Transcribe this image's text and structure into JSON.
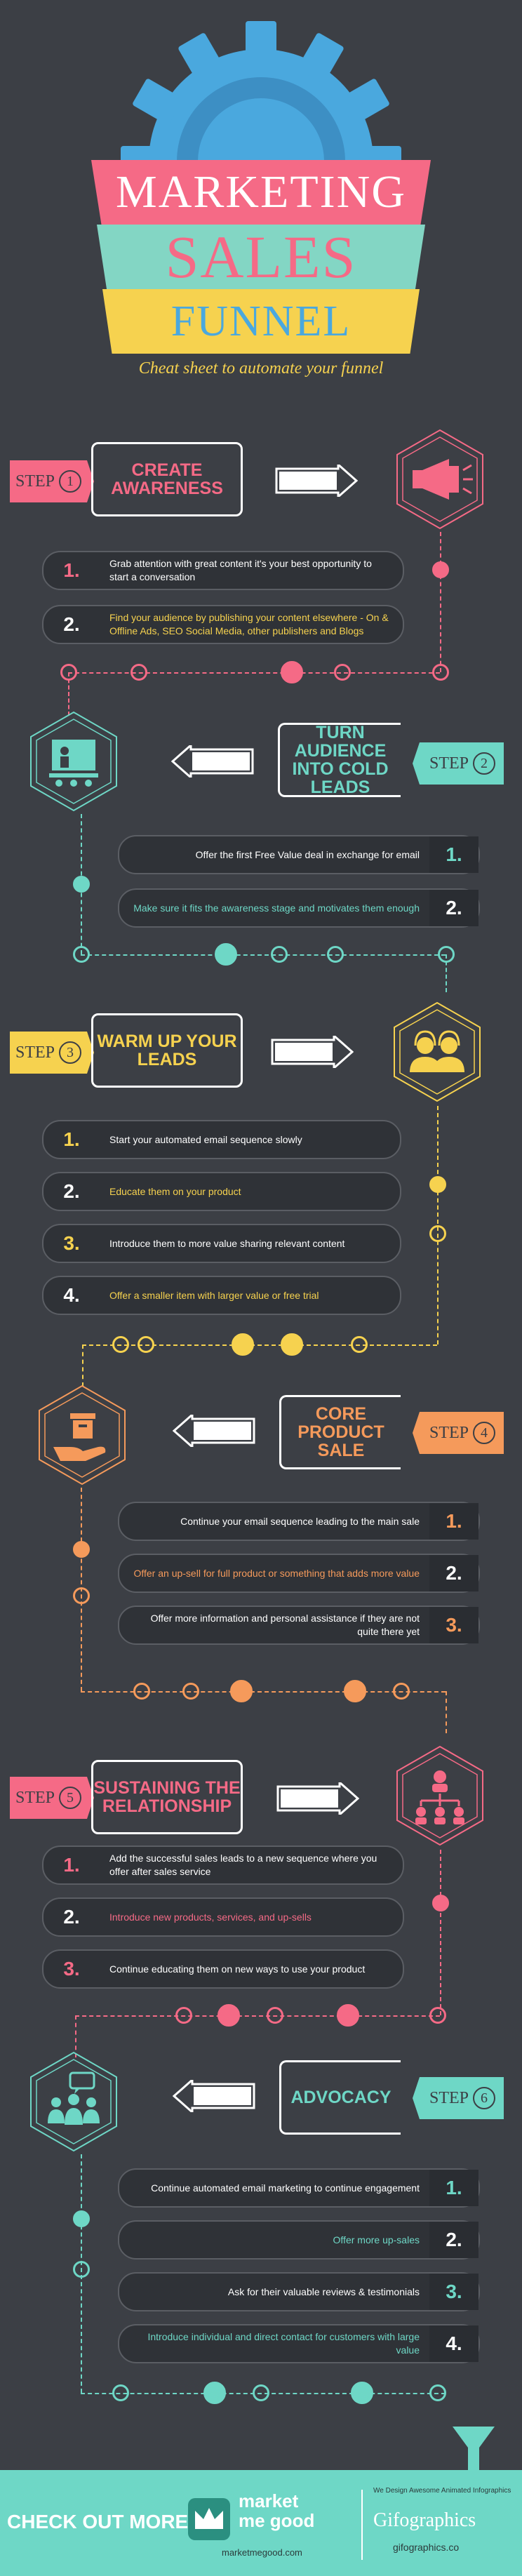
{
  "header": {
    "title_line1": "MARKETING",
    "title_line2": "SALES",
    "title_line3": "FUNNEL",
    "subtitle": "Cheat sheet to automate your funnel"
  },
  "colors": {
    "pink": "#f56a86",
    "mint": "#6ed7c6",
    "yellow": "#f6d24f",
    "orange": "#f59a5b",
    "blue": "#4aa8de",
    "bg": "#3c3f45"
  },
  "steps": [
    {
      "tag": "STEP",
      "num": "1",
      "title": "CREATE AWARENESS",
      "icon": "megaphone-icon",
      "items": [
        {
          "n": "1.",
          "text": "Grab attention with great content it's your best opportunity to start a conversation"
        },
        {
          "n": "2.",
          "text": "Find your audience by publishing your content elsewhere - On & Offline Ads, SEO Social Media, other publishers and Blogs"
        }
      ]
    },
    {
      "tag": "STEP",
      "num": "2",
      "title": "TURN AUDIENCE INTO COLD LEADS",
      "icon": "presentation-icon",
      "items": [
        {
          "n": "1.",
          "text": "Offer the first Free Value deal in exchange for email"
        },
        {
          "n": "2.",
          "text": "Make sure it fits the awareness stage and motivates them enough"
        }
      ]
    },
    {
      "tag": "STEP",
      "num": "3",
      "title": "WARM UP YOUR LEADS",
      "icon": "support-team-icon",
      "items": [
        {
          "n": "1.",
          "text": "Start your automated email sequence slowly"
        },
        {
          "n": "2.",
          "text": "Educate them on your product"
        },
        {
          "n": "3.",
          "text": "Introduce them to more value sharing relevant content"
        },
        {
          "n": "4.",
          "text": "Offer a smaller item with larger value or free trial"
        }
      ]
    },
    {
      "tag": "STEP",
      "num": "4",
      "title": "CORE PRODUCT SALE",
      "icon": "product-hand-icon",
      "items": [
        {
          "n": "1.",
          "text": "Continue your email sequence leading to the main sale"
        },
        {
          "n": "2.",
          "text": "Offer an up-sell for full product or something that adds more value"
        },
        {
          "n": "3.",
          "text": "Offer more information and personal assistance if they are not quite there yet"
        }
      ]
    },
    {
      "tag": "STEP",
      "num": "5",
      "title": "SUSTAINING THE RELATIONSHIP",
      "icon": "network-icon",
      "items": [
        {
          "n": "1.",
          "text": "Add the successful sales leads to a new sequence where you offer after sales service"
        },
        {
          "n": "2.",
          "text": "Introduce new products, services, and up-sells"
        },
        {
          "n": "3.",
          "text": "Continue educating them on new ways to use your product"
        }
      ]
    },
    {
      "tag": "STEP",
      "num": "6",
      "title": "ADVOCACY",
      "icon": "community-icon",
      "items": [
        {
          "n": "1.",
          "text": "Continue automated email marketing to continue engagement"
        },
        {
          "n": "2.",
          "text": "Offer more up-sales"
        },
        {
          "n": "3.",
          "text": "Ask for their valuable reviews & testimonials"
        },
        {
          "n": "4.",
          "text": "Introduce individual and direct contact for customers with large value"
        }
      ]
    }
  ],
  "footer": {
    "check_out": "CHECK OUT MORE :",
    "brand_line1": "market",
    "brand_line2": "me good",
    "brand_url": "marketmegood.com",
    "gif_tagline": "We Design Awesome Animated Infographics",
    "gif_brand": "Gifographics",
    "gif_url": "gifographics.co"
  }
}
